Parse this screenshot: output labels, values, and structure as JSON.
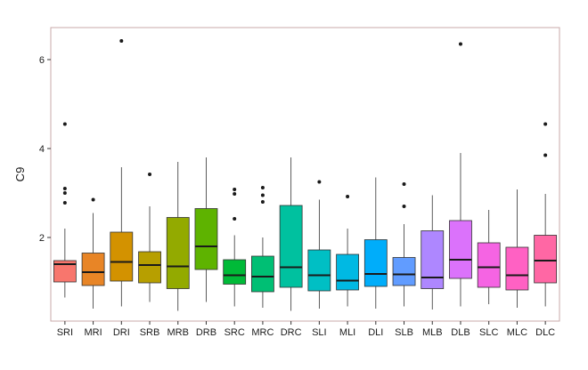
{
  "chart_data": {
    "type": "box",
    "ylabel": "C9",
    "ylim": [
      0.0,
      6.7
    ],
    "yticks": [
      2,
      4,
      6
    ],
    "grid": false,
    "legend": "none",
    "categories": [
      "SRI",
      "MRI",
      "DRI",
      "SRB",
      "MRB",
      "DRB",
      "SRC",
      "MRC",
      "DRC",
      "SLI",
      "MLI",
      "DLI",
      "SLB",
      "MLB",
      "DLB",
      "SLC",
      "MLC",
      "DLC"
    ],
    "boxes": [
      {
        "whisker_low": 0.65,
        "q1": 1.0,
        "median": 1.4,
        "q3": 1.48,
        "whisker_high": 2.2,
        "outliers": [
          2.78,
          3.0,
          3.1,
          4.55
        ],
        "color": "#F8766D"
      },
      {
        "whisker_low": 0.4,
        "q1": 0.92,
        "median": 1.22,
        "q3": 1.65,
        "whisker_high": 2.55,
        "outliers": [
          2.85
        ],
        "color": "#E88526"
      },
      {
        "whisker_low": 0.45,
        "q1": 1.02,
        "median": 1.45,
        "q3": 2.12,
        "whisker_high": 3.58,
        "outliers": [
          6.42
        ],
        "color": "#D39200"
      },
      {
        "whisker_low": 0.55,
        "q1": 0.98,
        "median": 1.38,
        "q3": 1.68,
        "whisker_high": 2.7,
        "outliers": [
          3.42
        ],
        "color": "#B79F00"
      },
      {
        "whisker_low": 0.35,
        "q1": 0.85,
        "median": 1.35,
        "q3": 2.45,
        "whisker_high": 3.7,
        "outliers": [],
        "color": "#93AA00"
      },
      {
        "whisker_low": 0.55,
        "q1": 1.28,
        "median": 1.8,
        "q3": 2.65,
        "whisker_high": 3.8,
        "outliers": [],
        "color": "#5EB300"
      },
      {
        "whisker_low": 0.45,
        "q1": 0.95,
        "median": 1.15,
        "q3": 1.5,
        "whisker_high": 2.05,
        "outliers": [
          2.42,
          2.98,
          3.08
        ],
        "color": "#00BA38"
      },
      {
        "whisker_low": 0.42,
        "q1": 0.78,
        "median": 1.12,
        "q3": 1.58,
        "whisker_high": 2.0,
        "outliers": [
          2.8,
          2.95,
          3.12
        ],
        "color": "#00BF74"
      },
      {
        "whisker_low": 0.35,
        "q1": 0.88,
        "median": 1.33,
        "q3": 2.72,
        "whisker_high": 3.8,
        "outliers": [],
        "color": "#00C19F"
      },
      {
        "whisker_low": 0.4,
        "q1": 0.8,
        "median": 1.15,
        "q3": 1.72,
        "whisker_high": 2.85,
        "outliers": [
          3.25
        ],
        "color": "#00BFC4"
      },
      {
        "whisker_low": 0.45,
        "q1": 0.82,
        "median": 1.03,
        "q3": 1.62,
        "whisker_high": 2.2,
        "outliers": [
          2.92
        ],
        "color": "#00B9E3"
      },
      {
        "whisker_low": 0.4,
        "q1": 0.9,
        "median": 1.18,
        "q3": 1.95,
        "whisker_high": 3.35,
        "outliers": [],
        "color": "#00ADFA"
      },
      {
        "whisker_low": 0.45,
        "q1": 0.92,
        "median": 1.17,
        "q3": 1.55,
        "whisker_high": 2.3,
        "outliers": [
          2.7,
          3.2
        ],
        "color": "#619CFF"
      },
      {
        "whisker_low": 0.38,
        "q1": 0.85,
        "median": 1.1,
        "q3": 2.15,
        "whisker_high": 2.95,
        "outliers": [],
        "color": "#AE87FF"
      },
      {
        "whisker_low": 0.45,
        "q1": 1.08,
        "median": 1.5,
        "q3": 2.38,
        "whisker_high": 3.9,
        "outliers": [
          6.35
        ],
        "color": "#DB72FB"
      },
      {
        "whisker_low": 0.5,
        "q1": 0.88,
        "median": 1.33,
        "q3": 1.88,
        "whisker_high": 2.62,
        "outliers": [],
        "color": "#F564E3"
      },
      {
        "whisker_low": 0.42,
        "q1": 0.82,
        "median": 1.15,
        "q3": 1.78,
        "whisker_high": 3.08,
        "outliers": [],
        "color": "#FF61C3"
      },
      {
        "whisker_low": 0.45,
        "q1": 0.98,
        "median": 1.48,
        "q3": 2.05,
        "whisker_high": 2.98,
        "outliers": [
          3.85,
          4.55
        ],
        "color": "#FF67A4"
      }
    ]
  }
}
